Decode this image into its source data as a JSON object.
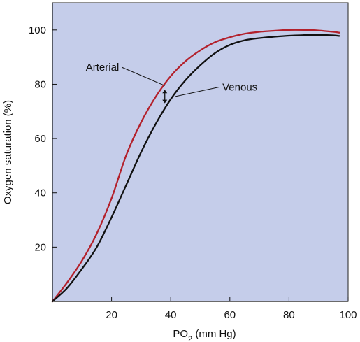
{
  "chart_data": {
    "type": "line",
    "title": "",
    "xlabel_main": "PO",
    "xlabel_sub": "2",
    "xlabel_rest": " (mm Hg)",
    "ylabel": "Oxygen saturation (%)",
    "xlim": [
      0,
      100
    ],
    "ylim": [
      0,
      110
    ],
    "x_ticks": [
      20,
      40,
      60,
      80,
      100
    ],
    "y_ticks": [
      20,
      40,
      60,
      80,
      100
    ],
    "grid": false,
    "background_color": "#c5cdea",
    "series": [
      {
        "name": "Arterial",
        "color": "#b3202b",
        "points": [
          [
            0,
            0
          ],
          [
            5,
            7
          ],
          [
            10,
            15
          ],
          [
            15,
            25
          ],
          [
            20,
            38
          ],
          [
            25,
            54
          ],
          [
            30,
            66
          ],
          [
            35,
            75.5
          ],
          [
            40,
            83
          ],
          [
            45,
            88.5
          ],
          [
            50,
            92.5
          ],
          [
            55,
            95.5
          ],
          [
            60,
            97.3
          ],
          [
            65,
            98.6
          ],
          [
            70,
            99.3
          ],
          [
            75,
            99.7
          ],
          [
            80,
            100
          ],
          [
            85,
            100
          ],
          [
            90,
            99.8
          ],
          [
            95,
            99.3
          ],
          [
            97,
            99
          ]
        ]
      },
      {
        "name": "Venous",
        "color": "#111111",
        "points": [
          [
            0,
            0
          ],
          [
            5,
            5
          ],
          [
            10,
            12
          ],
          [
            15,
            20
          ],
          [
            20,
            31
          ],
          [
            25,
            43
          ],
          [
            30,
            55
          ],
          [
            35,
            65.5
          ],
          [
            40,
            74.5
          ],
          [
            45,
            81.5
          ],
          [
            50,
            87
          ],
          [
            55,
            91.5
          ],
          [
            60,
            94.5
          ],
          [
            65,
            96.2
          ],
          [
            70,
            97
          ],
          [
            75,
            97.5
          ],
          [
            80,
            97.9
          ],
          [
            85,
            98.1
          ],
          [
            90,
            98.2
          ],
          [
            95,
            98
          ],
          [
            97,
            97.8
          ]
        ]
      }
    ],
    "annotations": [
      {
        "text": "Arterial",
        "points_to_series": "Arterial",
        "label_anchor": [
          23,
          85.5
        ],
        "point_at": [
          38,
          80
        ]
      },
      {
        "text": "Venous",
        "points_to_series": "Venous",
        "label_anchor": [
          57,
          79
        ],
        "point_at": [
          41,
          76
        ]
      }
    ],
    "double_arrow": {
      "x": 38,
      "y_from": 78,
      "y_to": 73
    }
  }
}
